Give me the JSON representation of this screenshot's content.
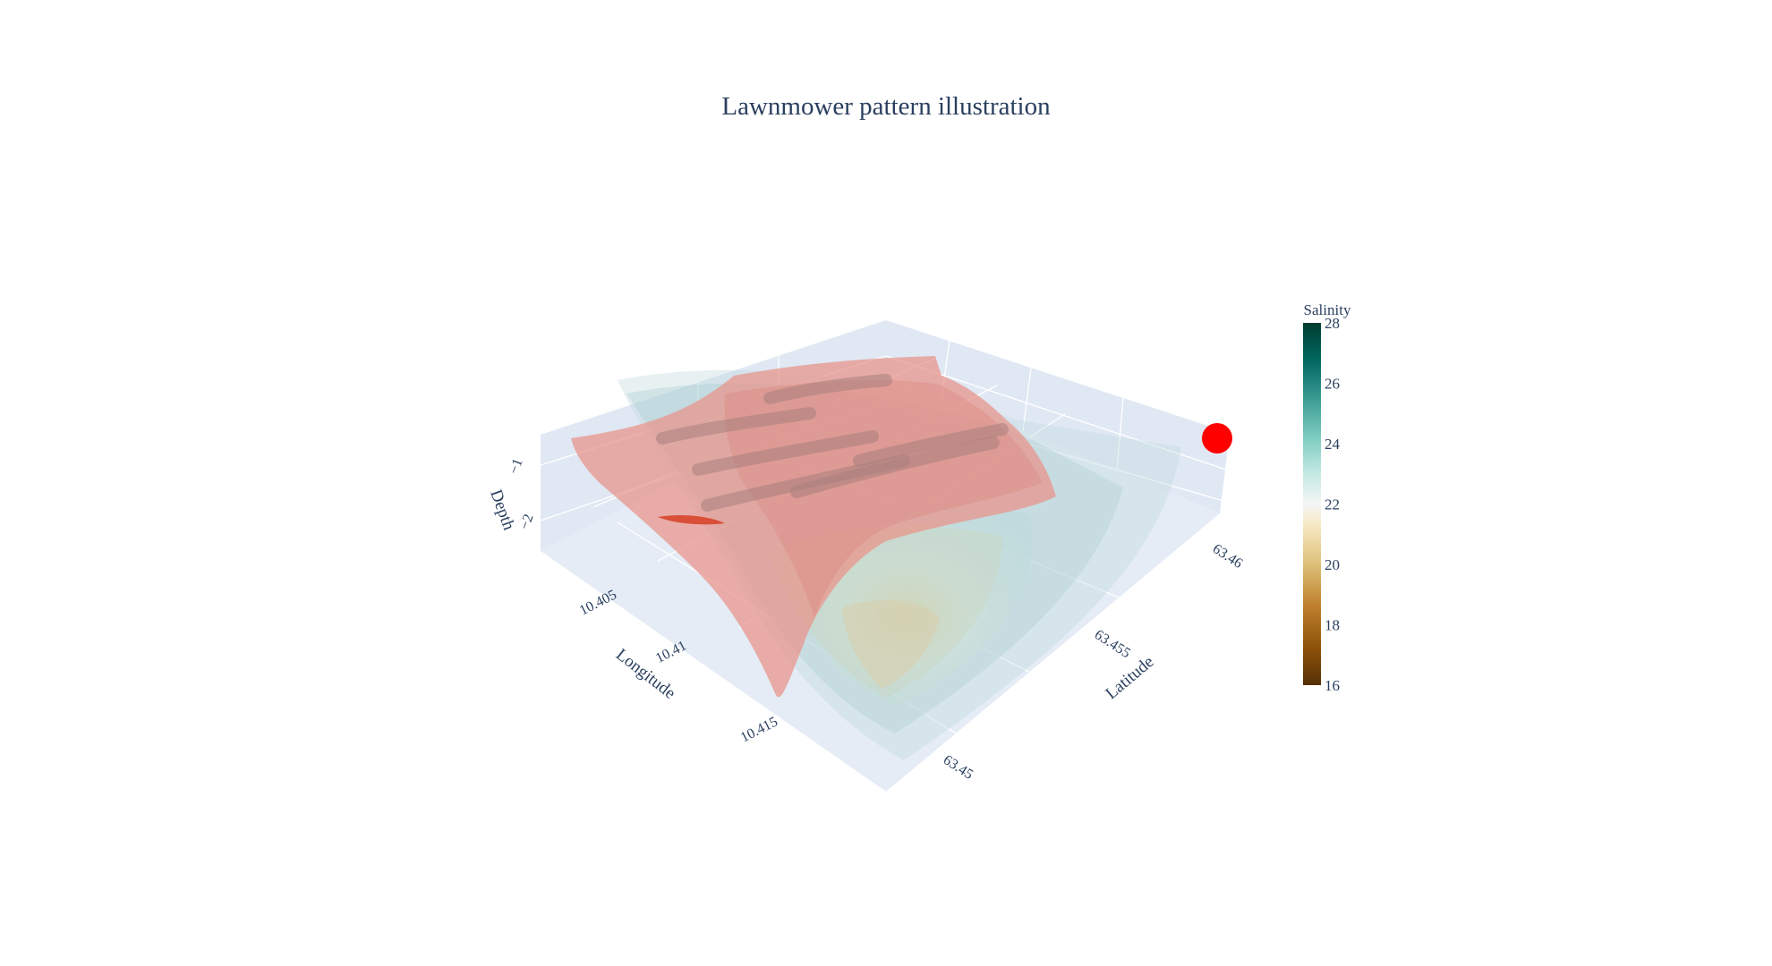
{
  "chart_data": {
    "type": "surface3d",
    "title": "Lawnmower pattern illustration",
    "axes": {
      "x": {
        "label": "Longitude",
        "ticks": [
          "10.405",
          "10.41",
          "10.415"
        ]
      },
      "y": {
        "label": "Latitude",
        "ticks": [
          "63.45",
          "63.455",
          "63.46"
        ]
      },
      "z": {
        "label": "Depth",
        "ticks": [
          "−1",
          "−2"
        ]
      }
    },
    "colorbar": {
      "title": "Salinity",
      "range": [
        16,
        28
      ],
      "ticks": [
        "16",
        "18",
        "20",
        "22",
        "24",
        "26",
        "28"
      ],
      "colorscale": [
        "#543005",
        "#8c510a",
        "#bf812d",
        "#dfc27d",
        "#f6e8c3",
        "#f5f5f5",
        "#c7eae5",
        "#80cdc1",
        "#35978f",
        "#01665e",
        "#003c30"
      ]
    },
    "surfaces": [
      {
        "name": "salinity-layers",
        "color": "#a8d0d2",
        "opacity": 0.35
      },
      {
        "name": "lawnmower-path-surface",
        "color": "#e8968c",
        "opacity": 0.75
      }
    ],
    "marker": {
      "color": "#ff0000"
    },
    "scene_bg": "#e5ecf6"
  }
}
